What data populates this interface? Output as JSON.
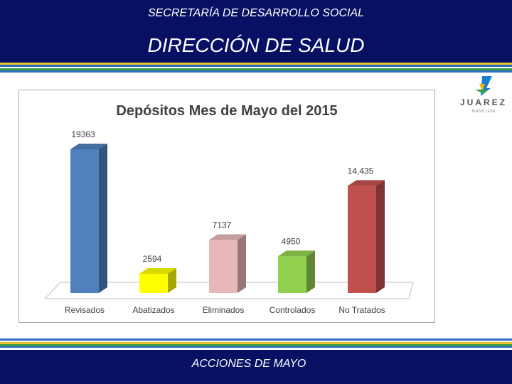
{
  "header": {
    "secretaria": "SECRETARÍA DE DESARROLLO SOCIAL",
    "direccion": "DIRECCIÓN DE SALUD"
  },
  "footer": {
    "label": "ACCIONES DE MAYO"
  },
  "logo": {
    "text": "JUAREZ",
    "subtext": "NUEVO LEÓN"
  },
  "colors": {
    "navy": "#071063",
    "stripe_blue": "#2e6fc0",
    "stripe_yellow": "#e7c42a",
    "stripe_green": "#3a9d4b"
  },
  "chart_data": {
    "type": "bar",
    "title": "Depósitos Mes de Mayo del 2015",
    "categories": [
      "Revisados",
      "Abatizados",
      "Eliminados",
      "Controlados",
      "No Tratados"
    ],
    "values": [
      19363,
      2594,
      7137,
      4950,
      14435
    ],
    "data_labels": [
      "19363",
      "2594",
      "7137",
      "4950",
      "14,435"
    ],
    "colors": [
      "#4f81bd",
      "#ffff00",
      "#e6b9b8",
      "#92d050",
      "#c0504d"
    ],
    "ylim": [
      0,
      19363
    ],
    "grid": false,
    "legend": "none",
    "style": "3d-columns"
  }
}
